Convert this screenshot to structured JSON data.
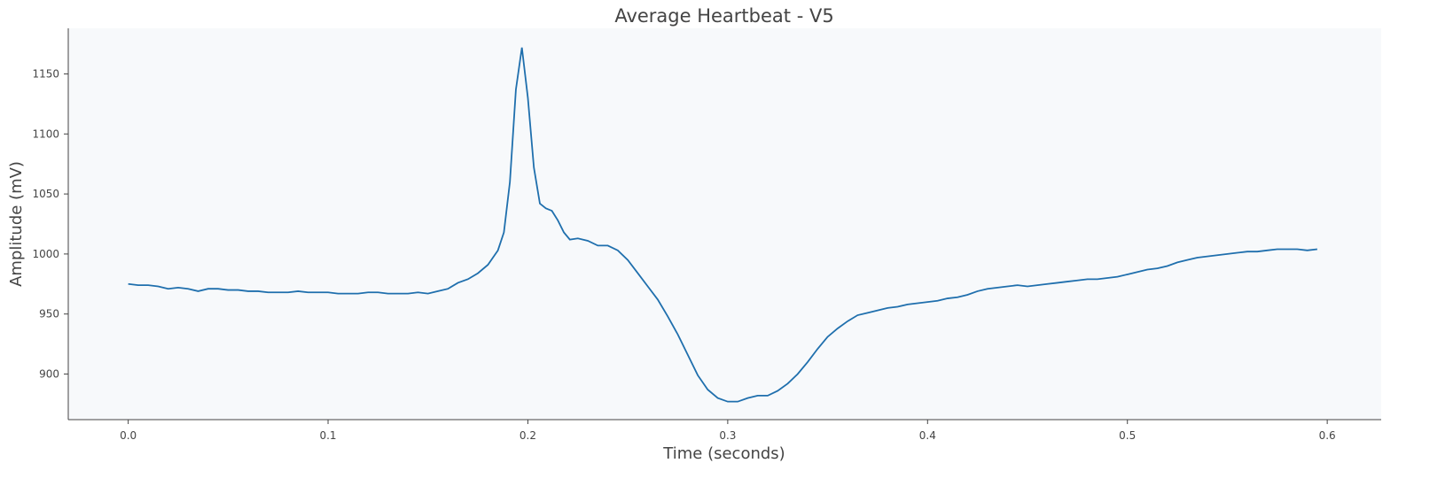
{
  "chart_data": {
    "type": "line",
    "title": "Average Heartbeat - V5",
    "x_label": "Time (seconds)",
    "y_label": "Amplitude (mV)",
    "x": [
      0,
      0.005,
      0.01,
      0.015,
      0.02,
      0.025,
      0.03,
      0.035,
      0.04,
      0.045,
      0.05,
      0.055,
      0.06,
      0.065,
      0.07,
      0.075,
      0.08,
      0.085,
      0.09,
      0.095,
      0.1,
      0.105,
      0.11,
      0.115,
      0.12,
      0.125,
      0.13,
      0.135,
      0.14,
      0.145,
      0.15,
      0.155,
      0.16,
      0.165,
      0.17,
      0.175,
      0.18,
      0.185,
      0.188,
      0.191,
      0.194,
      0.197,
      0.2,
      0.203,
      0.206,
      0.209,
      0.212,
      0.215,
      0.218,
      0.221,
      0.225,
      0.23,
      0.235,
      0.24,
      0.245,
      0.25,
      0.255,
      0.26,
      0.265,
      0.27,
      0.275,
      0.28,
      0.285,
      0.29,
      0.295,
      0.3,
      0.305,
      0.31,
      0.315,
      0.32,
      0.325,
      0.33,
      0.335,
      0.34,
      0.345,
      0.35,
      0.355,
      0.36,
      0.365,
      0.37,
      0.375,
      0.38,
      0.385,
      0.39,
      0.395,
      0.4,
      0.405,
      0.41,
      0.415,
      0.42,
      0.425,
      0.43,
      0.435,
      0.44,
      0.445,
      0.45,
      0.455,
      0.46,
      0.465,
      0.47,
      0.475,
      0.48,
      0.485,
      0.49,
      0.495,
      0.5,
      0.505,
      0.51,
      0.515,
      0.52,
      0.525,
      0.53,
      0.535,
      0.54,
      0.545,
      0.55,
      0.555,
      0.56,
      0.565,
      0.57,
      0.575,
      0.58,
      0.585,
      0.59,
      0.595
    ],
    "values": [
      975,
      974,
      974,
      973,
      971,
      972,
      971,
      969,
      971,
      971,
      970,
      970,
      969,
      969,
      968,
      968,
      968,
      969,
      968,
      968,
      968,
      967,
      967,
      967,
      968,
      968,
      967,
      967,
      967,
      968,
      967,
      969,
      971,
      976,
      979,
      984,
      991,
      1003,
      1018,
      1060,
      1137,
      1172,
      1130,
      1072,
      1042,
      1038,
      1036,
      1028,
      1018,
      1012,
      1013,
      1011,
      1007,
      1007,
      1003,
      995,
      984,
      973,
      962,
      948,
      933,
      916,
      899,
      887,
      880,
      877,
      877,
      880,
      882,
      882,
      886,
      892,
      900,
      910,
      921,
      931,
      938,
      944,
      949,
      951,
      953,
      955,
      956,
      958,
      959,
      960,
      961,
      963,
      964,
      966,
      969,
      971,
      972,
      973,
      974,
      973,
      974,
      975,
      976,
      977,
      978,
      979,
      979,
      980,
      981,
      983,
      985,
      987,
      988,
      990,
      993,
      995,
      997,
      998,
      999,
      1000,
      1001,
      1002,
      1002,
      1003,
      1004,
      1004,
      1004,
      1003,
      1004
    ],
    "color": "#1f6fad",
    "xlim": [
      -0.03,
      0.627
    ],
    "xticks": [
      {
        "value": 0,
        "label": "0.0"
      },
      0.1,
      0.2,
      0.3,
      0.4,
      0.5,
      0.6
    ],
    "ylim": [
      862,
      1188
    ],
    "yticks": [
      900,
      950,
      1000,
      1050,
      1100,
      1150
    ]
  }
}
